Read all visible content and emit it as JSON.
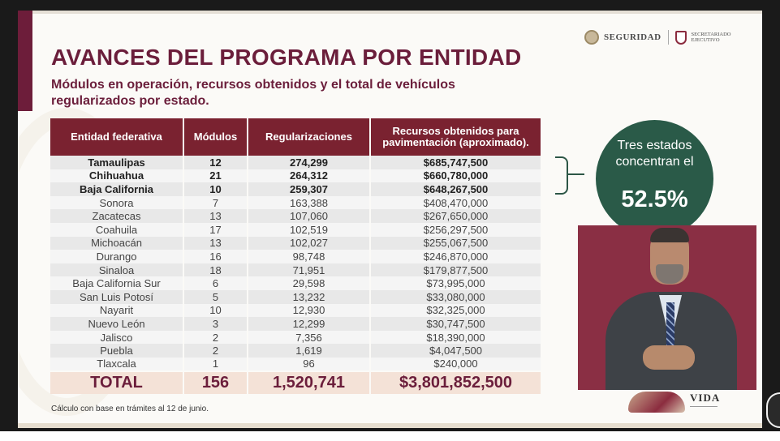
{
  "header": {
    "title": "AVANCES DEL PROGRAMA POR ENTIDAD",
    "subtitle": "Módulos en operación, recursos obtenidos y el total de vehículos regularizados por estado.",
    "logo_1": "SEGURIDAD",
    "logo_2": "SECRETARIADO EJECUTIVO"
  },
  "table": {
    "columns": [
      "Entidad federativa",
      "Módulos",
      "Regularizaciones",
      "Recursos obtenidos para pavimentación (aproximado)."
    ],
    "rows": [
      {
        "entidad": "Tamaulipas",
        "modulos": "12",
        "regularizaciones": "274,299",
        "recursos": "$685,747,500"
      },
      {
        "entidad": "Chihuahua",
        "modulos": "21",
        "regularizaciones": "264,312",
        "recursos": "$660,780,000"
      },
      {
        "entidad": "Baja California",
        "modulos": "10",
        "regularizaciones": "259,307",
        "recursos": "$648,267,500"
      },
      {
        "entidad": "Sonora",
        "modulos": "7",
        "regularizaciones": "163,388",
        "recursos": "$408,470,000"
      },
      {
        "entidad": "Zacatecas",
        "modulos": "13",
        "regularizaciones": "107,060",
        "recursos": "$267,650,000"
      },
      {
        "entidad": "Coahuila",
        "modulos": "17",
        "regularizaciones": "102,519",
        "recursos": "$256,297,500"
      },
      {
        "entidad": "Michoacán",
        "modulos": "13",
        "regularizaciones": "102,027",
        "recursos": "$255,067,500"
      },
      {
        "entidad": "Durango",
        "modulos": "16",
        "regularizaciones": "98,748",
        "recursos": "$246,870,000"
      },
      {
        "entidad": "Sinaloa",
        "modulos": "18",
        "regularizaciones": "71,951",
        "recursos": "$179,877,500"
      },
      {
        "entidad": "Baja California Sur",
        "modulos": "6",
        "regularizaciones": "29,598",
        "recursos": "$73,995,000"
      },
      {
        "entidad": "San Luis Potosí",
        "modulos": "5",
        "regularizaciones": "13,232",
        "recursos": "$33,080,000"
      },
      {
        "entidad": "Nayarit",
        "modulos": "10",
        "regularizaciones": "12,930",
        "recursos": "$32,325,000"
      },
      {
        "entidad": "Nuevo León",
        "modulos": "3",
        "regularizaciones": "12,299",
        "recursos": "$30,747,500"
      },
      {
        "entidad": "Jalisco",
        "modulos": "2",
        "regularizaciones": "7,356",
        "recursos": "$18,390,000"
      },
      {
        "entidad": "Puebla",
        "modulos": "2",
        "regularizaciones": "1,619",
        "recursos": "$4,047,500"
      },
      {
        "entidad": "Tlaxcala",
        "modulos": "1",
        "regularizaciones": "96",
        "recursos": "$240,000"
      }
    ],
    "total": {
      "entidad": "TOTAL",
      "modulos": "156",
      "regularizaciones": "1,520,741",
      "recursos": "$3,801,852,500"
    }
  },
  "footnote": "Cálculo con base en trámites al 12 de junio.",
  "callout": {
    "text": "Tres estados concentran el",
    "percent": "52.5%"
  },
  "brand": {
    "text": "VIDA"
  },
  "colors": {
    "primary": "#6b1e3b",
    "header_bg": "#7a2230",
    "callout_bg": "#2a5a48",
    "total_bg": "#f4e2d7"
  }
}
